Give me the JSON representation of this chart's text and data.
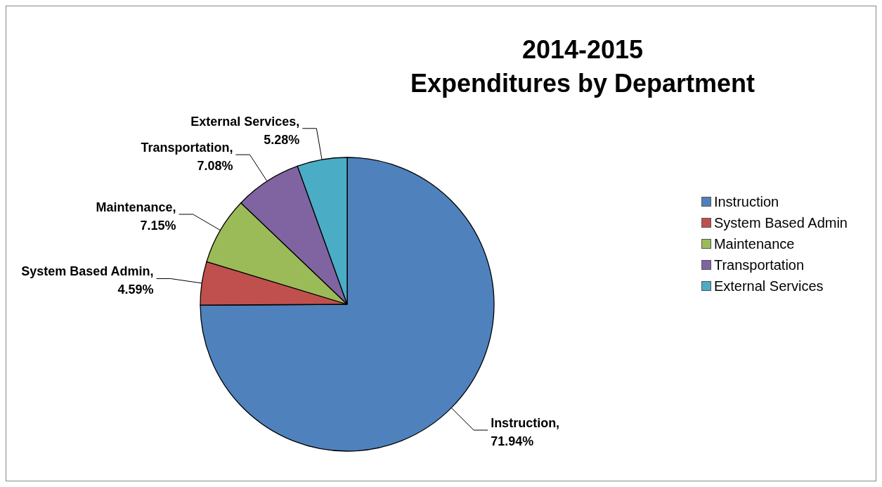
{
  "chart_data": {
    "type": "pie",
    "title": "2014-2015\nExpenditures by Department",
    "categories": [
      "Instruction",
      "System Based Admin",
      "Maintenance",
      "Transportation",
      "External Services"
    ],
    "values": [
      71.94,
      4.59,
      7.15,
      7.08,
      5.28
    ],
    "value_labels": [
      "Instruction, 71.94%",
      "System Based Admin, 4.59%",
      "Maintenance, 7.15%",
      "Transportation, 7.08%",
      "External Services, 5.28%"
    ],
    "colors": [
      "#4f81bd",
      "#c0504d",
      "#9bbb59",
      "#8064a2",
      "#4bacc6"
    ],
    "legend": "right"
  }
}
